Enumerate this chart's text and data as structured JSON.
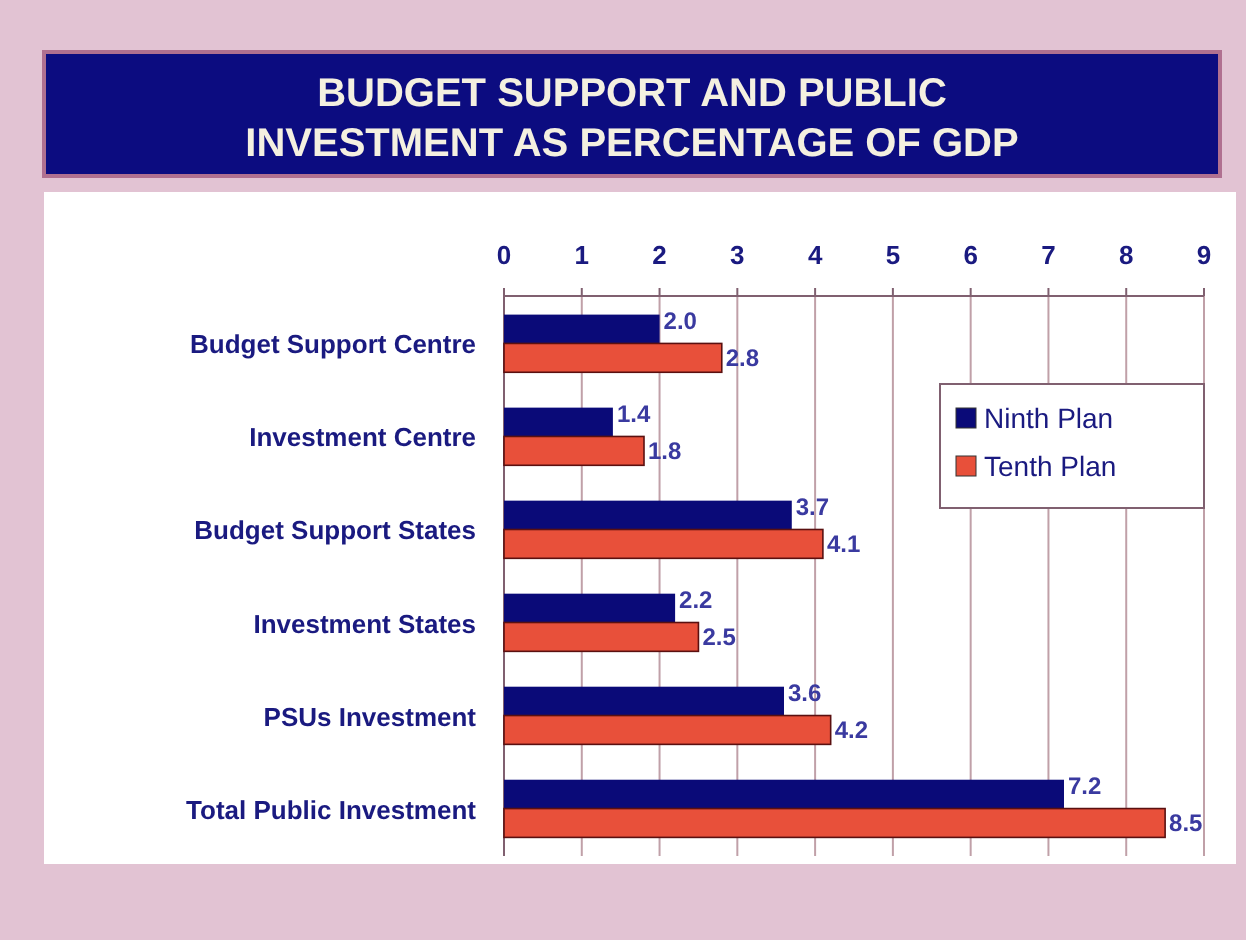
{
  "chart_data": {
    "type": "bar",
    "orientation": "horizontal",
    "title": "BUDGET SUPPORT AND PUBLIC INVESTMENT AS PERCENTAGE OF GDP",
    "categories": [
      "Budget Support Centre",
      "Investment Centre",
      "Budget Support States",
      "Investment States",
      "PSUs Investment",
      "Total Public Investment"
    ],
    "series": [
      {
        "name": "Ninth Plan",
        "color": "#0a0a78",
        "values": [
          2.0,
          1.4,
          3.7,
          2.2,
          3.6,
          7.2
        ],
        "value_labels": [
          "2.0",
          "1.4",
          "3.7",
          "2.2",
          "3.6",
          "7.2"
        ]
      },
      {
        "name": "Tenth Plan",
        "color": "#e8503a",
        "values": [
          2.8,
          1.8,
          4.1,
          2.5,
          4.2,
          8.5
        ],
        "value_labels": [
          "2.8",
          "1.8",
          "4.1",
          "2.5",
          "4.2",
          "8.5"
        ]
      }
    ],
    "xlim": [
      0,
      9
    ],
    "xticks": [
      0,
      1,
      2,
      3,
      4,
      5,
      6,
      7,
      8,
      9
    ],
    "grid": "x",
    "legend": "right"
  }
}
